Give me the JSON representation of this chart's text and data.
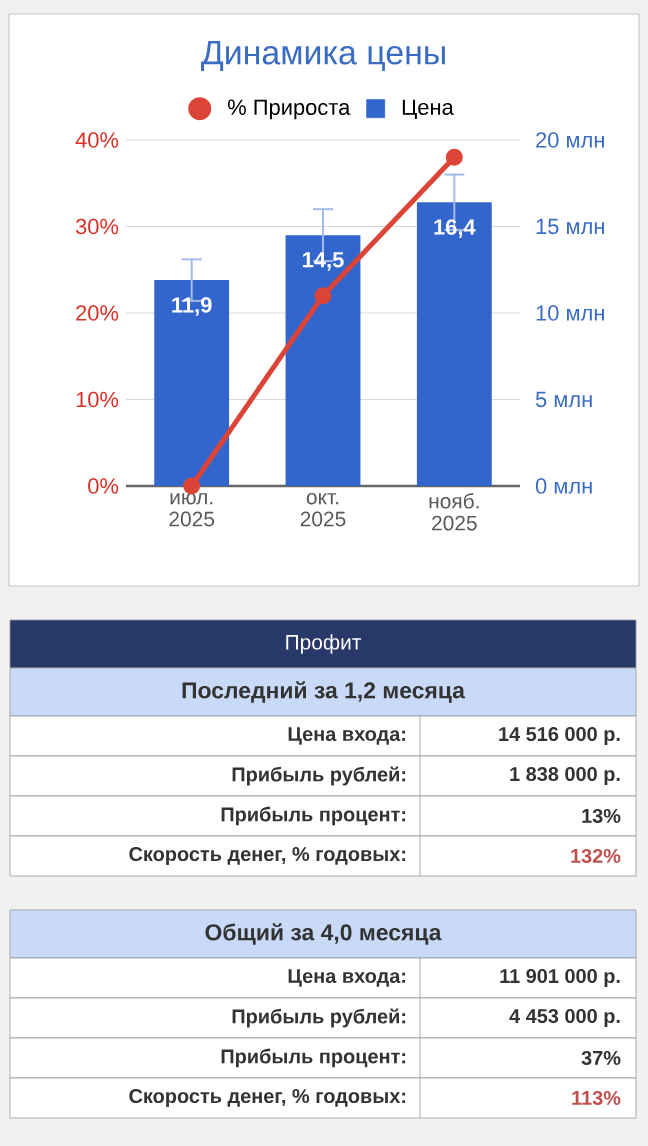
{
  "chart_data": {
    "type": "bar",
    "title": "Динамика цены",
    "categories": [
      "июл. 2025",
      "окт. 2025",
      "нояб. 2025"
    ],
    "series": [
      {
        "name": "% Прироста",
        "type": "line",
        "color": "#db4437",
        "values": [
          0,
          22,
          38
        ],
        "axis": "y"
      },
      {
        "name": "Цена",
        "color": "#3366cc",
        "values": [
          11.9,
          14.5,
          16.4
        ],
        "errors": [
          1.2,
          1.5,
          1.6
        ],
        "value_labels": [
          "11,9",
          "14,5",
          "16,4"
        ],
        "axis": "y2"
      }
    ],
    "ylim": [
      0,
      40
    ],
    "yticks": [
      {
        "value": 0,
        "label": "0%"
      },
      {
        "value": 10,
        "label": "10%"
      },
      {
        "value": 20,
        "label": "20%"
      },
      {
        "value": 30,
        "label": "30%"
      },
      {
        "value": 40,
        "label": "40%"
      }
    ],
    "y2lim": [
      0,
      20
    ],
    "y2ticks": [
      {
        "value": 0,
        "label": "0 млн"
      },
      {
        "value": 5,
        "label": "5 млн"
      },
      {
        "value": 10,
        "label": "10 млн"
      },
      {
        "value": 15,
        "label": "15 млн"
      },
      {
        "value": 20,
        "label": "20 млн"
      }
    ],
    "grid": "y",
    "legend": "top",
    "marker": "circle",
    "annotations": [
      "Профит",
      "Последний за 1,2 месяца",
      "Цена входа:",
      "14 516 000 р.",
      "Прибыль рублей:",
      "1 838 000 р.",
      "Прибыль процент:",
      "13%",
      "Скорость денег, % годовых:",
      "132%",
      "Общий за 4,0 месяца",
      "Цена входа:",
      "11 901 000 р.",
      "Прибыль рублей:",
      "4 453 000 р.",
      "Прибыль процент:",
      "37%",
      "Скорость денег, % годовых:",
      "113%"
    ]
  }
}
